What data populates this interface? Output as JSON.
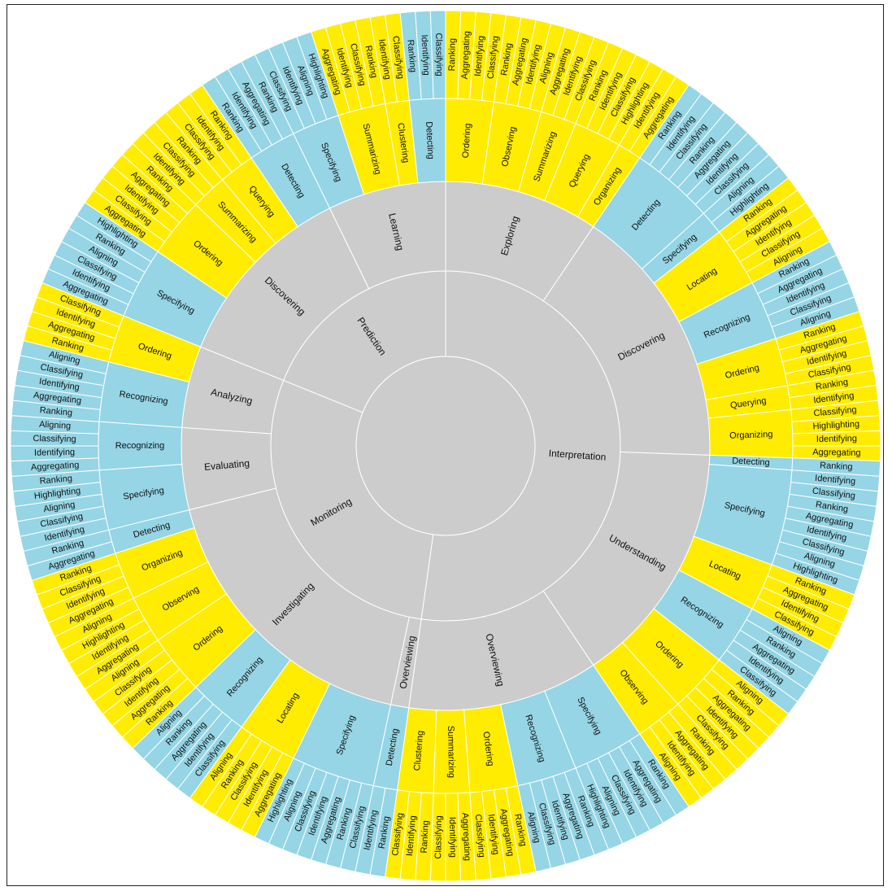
{
  "chart_data": {
    "type": "sunburst",
    "colors": {
      "gray": "#cccccc",
      "yellow": "#ffec00",
      "blue": "#95d5e5"
    },
    "root": {
      "children": [
        {
          "label": "Interpretation",
          "children": [
            {
              "label": "Exploring",
              "children": [
                {
                  "label": "Ordering",
                  "c": "yellow",
                  "children": [
                    "Ranking",
                    "Aggregating",
                    "Identifying",
                    "Classifying"
                  ]
                },
                {
                  "label": "Observing",
                  "c": "yellow",
                  "children": [
                    "Ranking",
                    "Aggregating",
                    "Identifying",
                    "Aligning"
                  ]
                },
                {
                  "label": "Summarizing",
                  "c": "yellow",
                  "children": [
                    "Aggregating",
                    "Identifying",
                    "Classifying"
                  ]
                },
                {
                  "label": "Querying",
                  "c": "yellow",
                  "children": [
                    "Ranking",
                    "Identifying",
                    "Classifying",
                    "Highlighting"
                  ]
                },
                {
                  "label": "Organizing",
                  "c": "yellow",
                  "children": [
                    "Identifying",
                    "Aggregating"
                  ]
                }
              ]
            },
            {
              "label": "Discovering",
              "children": [
                {
                  "label": "Detecting",
                  "c": "blue",
                  "children": [
                    "Ranking",
                    "Identifying",
                    "Classifying",
                    "Ranking",
                    "Aggregating",
                    "Identifying",
                    "Classifying"
                  ]
                },
                {
                  "label": "Specifying",
                  "c": "blue",
                  "children": [
                    "Aligning",
                    "Highlighting"
                  ]
                },
                {
                  "label": "Locating",
                  "c": "yellow",
                  "children": [
                    "Ranking",
                    "Aggregating",
                    "Identifying",
                    "Classifying",
                    "Aligning"
                  ]
                },
                {
                  "label": "Recognizing",
                  "c": "blue",
                  "children": [
                    "Ranking",
                    "Aggregating",
                    "Identifying",
                    "Classifying",
                    "Aligning"
                  ]
                },
                {
                  "label": "Ordering",
                  "c": "yellow",
                  "children": [
                    "Ranking",
                    "Aggregating",
                    "Identifying",
                    "Classifying"
                  ]
                },
                {
                  "label": "Querying",
                  "c": "yellow",
                  "children": [
                    "Ranking",
                    "Identifying"
                  ]
                },
                {
                  "label": "Organizing",
                  "c": "yellow",
                  "children": [
                    "Classifying",
                    "Highlighting",
                    "Identifying",
                    "Aggregating"
                  ]
                }
              ]
            },
            {
              "label": "Understanding",
              "children": [
                {
                  "label": "Detecting",
                  "c": "blue",
                  "children": [
                    "Ranking"
                  ]
                },
                {
                  "label": "Specifying",
                  "c": "blue",
                  "children": [
                    "Identifying",
                    "Classifying",
                    "Ranking",
                    "Aggregating",
                    "Identifying",
                    "Classifying",
                    "Aligning",
                    "Highlighting"
                  ]
                },
                {
                  "label": "Locating",
                  "c": "yellow",
                  "children": [
                    "Ranking",
                    "Aggregating",
                    "Identifying",
                    "Classifying"
                  ]
                },
                {
                  "label": "Recognizing",
                  "c": "blue",
                  "children": [
                    "Aligning",
                    "Ranking",
                    "Aggregating",
                    "Identifying",
                    "Classifying"
                  ]
                },
                {
                  "label": "Ordering",
                  "c": "yellow",
                  "children": [
                    "Aligning",
                    "Ranking",
                    "Aggregating",
                    "Identifying",
                    "Classifying"
                  ]
                },
                {
                  "label": "Observing",
                  "c": "yellow",
                  "children": [
                    "Ranking",
                    "Aggregating",
                    "Identifying",
                    "Aligning"
                  ]
                }
              ]
            },
            {
              "label": "Overviewing",
              "children": [
                {
                  "label": "Specifying",
                  "c": "blue",
                  "children": [
                    "Ranking",
                    "Aggregating",
                    "Identifying",
                    "Classifying",
                    "Aligning",
                    "Highlighting"
                  ]
                },
                {
                  "label": "Recognizing",
                  "c": "blue",
                  "children": [
                    "Ranking",
                    "Aggregating",
                    "Identifying",
                    "Classifying",
                    "Aligning"
                  ]
                },
                {
                  "label": "Ordering",
                  "c": "yellow",
                  "children": [
                    "Ranking",
                    "Aggregating",
                    "Identifying",
                    "Classifying"
                  ]
                },
                {
                  "label": "Summarizing",
                  "c": "yellow",
                  "children": [
                    "Aggregating",
                    "Identifying",
                    "Classifying"
                  ]
                },
                {
                  "label": "Clustering",
                  "c": "yellow",
                  "children": [
                    "Ranking",
                    "Identifying",
                    "Classifying"
                  ]
                }
              ]
            }
          ]
        },
        {
          "label": "Monitoring",
          "children": [
            {
              "label": "Overviewing",
              "children": [
                {
                  "label": "Detecting",
                  "c": "blue",
                  "children": [
                    "Ranking",
                    "Identifying"
                  ]
                }
              ]
            },
            {
              "label": "Investigating",
              "children": [
                {
                  "label": "Specifying",
                  "c": "blue",
                  "children": [
                    "Classifying",
                    "Ranking",
                    "Aggregating",
                    "Identifying",
                    "Classifying",
                    "Aligning",
                    "Highlighting"
                  ]
                },
                {
                  "label": "Locating",
                  "c": "yellow",
                  "children": [
                    "Aggregating",
                    "Identifying",
                    "Classifying",
                    "Ranking",
                    "Aligning"
                  ]
                },
                {
                  "label": "Recognizing",
                  "c": "blue",
                  "children": [
                    "Classifying",
                    "Identifying",
                    "Aggregating",
                    "Ranking",
                    "Aligning"
                  ]
                },
                {
                  "label": "Ordering",
                  "c": "yellow",
                  "children": [
                    "Ranking",
                    "Aggregating",
                    "Identifying",
                    "Classifying",
                    "Aligning"
                  ]
                },
                {
                  "label": "Observing",
                  "c": "yellow",
                  "children": [
                    "Aggregating",
                    "Identifying",
                    "Highlighting",
                    "Aligning"
                  ]
                },
                {
                  "label": "Organizing",
                  "c": "yellow",
                  "children": [
                    "Aggregating",
                    "Identifying",
                    "Classifying",
                    "Ranking"
                  ]
                },
                {
                  "label": "Detecting",
                  "c": "blue",
                  "children": [
                    "Aggregating",
                    "Ranking"
                  ]
                }
              ]
            },
            {
              "label": "Evaluating",
              "children": [
                {
                  "label": "Specifying",
                  "c": "blue",
                  "children": [
                    "Identifying",
                    "Classifying",
                    "Aligning",
                    "Highlighting",
                    "Ranking"
                  ]
                },
                {
                  "label": "Recognizing",
                  "c": "blue",
                  "children": [
                    "Aggregating",
                    "Identifying",
                    "Classifying",
                    "Aligning"
                  ]
                }
              ]
            },
            {
              "label": "Analyzing",
              "children": [
                {
                  "label": "Recognizing",
                  "c": "blue",
                  "children": [
                    "Ranking",
                    "Aggregating",
                    "Identifying",
                    "Classifying",
                    "Aligning"
                  ]
                },
                {
                  "label": "Ordering",
                  "c": "yellow",
                  "children": [
                    "Ranking",
                    "Aggregating",
                    "Identifying",
                    "Classifying"
                  ]
                }
              ]
            }
          ]
        },
        {
          "label": "Prediction",
          "children": [
            {
              "label": "Discovering",
              "children": [
                {
                  "label": "Specifying",
                  "c": "blue",
                  "children": [
                    "Aggregating",
                    "Identifying",
                    "Classifying",
                    "Aligning",
                    "Ranking",
                    "Highlighting"
                  ]
                },
                {
                  "label": "Ordering",
                  "c": "yellow",
                  "children": [
                    "Aggregating",
                    "Classifying",
                    "Identifying",
                    "Aggregating",
                    "Ranking"
                  ]
                },
                {
                  "label": "Summarizing",
                  "c": "yellow",
                  "children": [
                    "Identifying",
                    "Classifying",
                    "Ranking"
                  ]
                },
                {
                  "label": "Querying",
                  "c": "yellow",
                  "children": [
                    "Classifying",
                    "Identifying",
                    "Ranking"
                  ]
                },
                {
                  "label": "Detecting",
                  "c": "blue",
                  "children": [
                    "Ranking",
                    "Identifying",
                    "Aggregating",
                    "Ranking"
                  ]
                }
              ]
            },
            {
              "label": "Learning",
              "children": [
                {
                  "label": "Specifying",
                  "c": "blue",
                  "children": [
                    "Classifying",
                    "Identifying",
                    "Aligning",
                    "Highlighting"
                  ]
                },
                {
                  "label": "Summarizing",
                  "c": "yellow",
                  "children": [
                    "Aggregating",
                    "Identifying",
                    "Classifying",
                    "Ranking"
                  ]
                },
                {
                  "label": "Clustering",
                  "c": "yellow",
                  "children": [
                    "Identifying",
                    "Classifying"
                  ]
                },
                {
                  "label": "Detecting",
                  "c": "blue",
                  "children": [
                    "Ranking",
                    "Identifying",
                    "Classifying"
                  ]
                }
              ]
            }
          ]
        }
      ]
    }
  }
}
